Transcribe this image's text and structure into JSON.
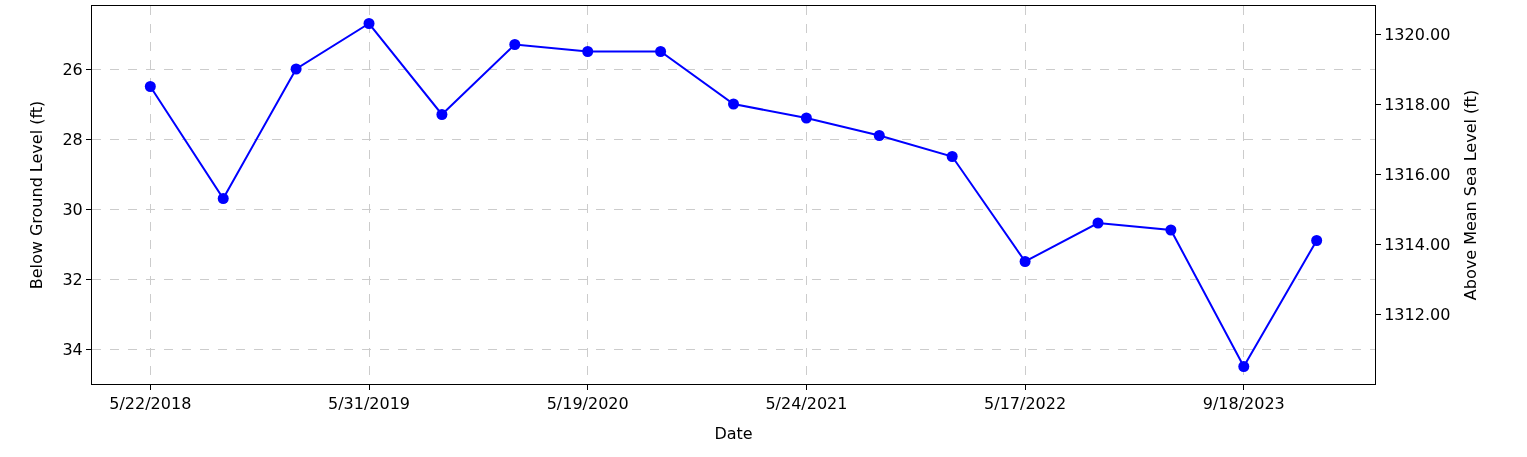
{
  "chart_data": {
    "type": "line",
    "xlabel": "Date",
    "ylabel": "Below Ground Level (ft)",
    "y2label": "Above Mean Sea Level (ft)",
    "categories": [
      "5/22/2018",
      null,
      null,
      "5/31/2019",
      null,
      null,
      "5/19/2020",
      null,
      null,
      "5/24/2021",
      null,
      null,
      "5/17/2022",
      null,
      null,
      "9/18/2023",
      null
    ],
    "series": [
      {
        "color": "#0000ff",
        "values": [
          26.5,
          29.7,
          26.0,
          24.7,
          27.3,
          25.3,
          25.5,
          25.5,
          27.0,
          27.4,
          27.9,
          28.5,
          31.5,
          30.4,
          30.6,
          34.5,
          30.9
        ]
      }
    ],
    "ylim": [
      35.0,
      24.2
    ],
    "yticks": [
      26,
      28,
      30,
      32,
      34
    ],
    "y2lim": [
      1310.0,
      1320.8
    ],
    "y2ticks": [
      {
        "value": 1312,
        "label": "1312.00"
      },
      {
        "value": 1314,
        "label": "1314.00"
      },
      {
        "value": 1316,
        "label": "1316.00"
      },
      {
        "value": 1318,
        "label": "1318.00"
      },
      {
        "value": 1320,
        "label": "1320.00"
      }
    ],
    "grid": true,
    "marker": "circle",
    "line_style": "solid",
    "legend": false
  }
}
